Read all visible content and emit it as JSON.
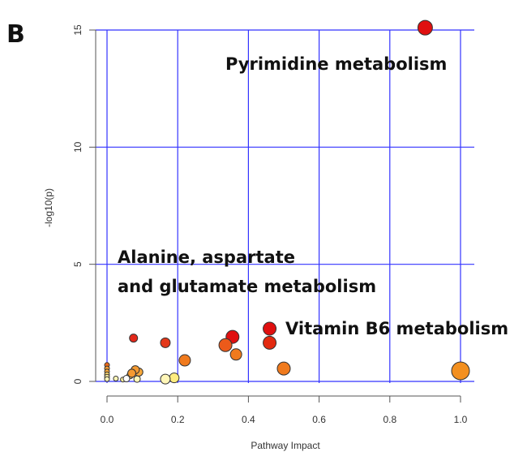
{
  "panel_label": "B",
  "chart_data": {
    "type": "scatter",
    "title": "",
    "xlabel": "Pathway Impact",
    "ylabel": "-log10(p)",
    "xlim": [
      0,
      1.0
    ],
    "ylim": [
      0,
      15
    ],
    "x_ticks": [
      "0.0",
      "0.2",
      "0.4",
      "0.6",
      "0.8",
      "1.0"
    ],
    "y_ticks": [
      "0",
      "5",
      "10",
      "15"
    ],
    "grid": true,
    "grid_color": "#3333ff",
    "legend": "none",
    "points": [
      {
        "x": 0.9,
        "y": 15.1,
        "color": "#e01010"
      },
      {
        "x": 1.0,
        "y": 0.45,
        "color": "#f39020"
      },
      {
        "x": 0.46,
        "y": 2.25,
        "color": "#e01010"
      },
      {
        "x": 0.46,
        "y": 1.65,
        "color": "#e32a10"
      },
      {
        "x": 0.5,
        "y": 0.55,
        "color": "#f07a1d"
      },
      {
        "x": 0.355,
        "y": 1.9,
        "color": "#e01010"
      },
      {
        "x": 0.335,
        "y": 1.55,
        "color": "#ec5a1a"
      },
      {
        "x": 0.365,
        "y": 1.15,
        "color": "#f07a1d"
      },
      {
        "x": 0.22,
        "y": 0.9,
        "color": "#f07a1d"
      },
      {
        "x": 0.165,
        "y": 1.65,
        "color": "#e3381a"
      },
      {
        "x": 0.075,
        "y": 1.85,
        "color": "#e3281a"
      },
      {
        "x": 0.19,
        "y": 0.15,
        "color": "#ffec80"
      },
      {
        "x": 0.165,
        "y": 0.1,
        "color": "#fff6b8"
      },
      {
        "x": 0.09,
        "y": 0.4,
        "color": "#f7a83a"
      },
      {
        "x": 0.08,
        "y": 0.5,
        "color": "#f59a30"
      },
      {
        "x": 0.07,
        "y": 0.35,
        "color": "#f59a30"
      },
      {
        "x": 0.065,
        "y": 0.25,
        "color": "#fad56a"
      },
      {
        "x": 0.085,
        "y": 0.1,
        "color": "#fff6b8"
      },
      {
        "x": 0.055,
        "y": 0.12,
        "color": "#ffffff"
      },
      {
        "x": 0.045,
        "y": 0.08,
        "color": "#fff0a0"
      },
      {
        "x": 0.025,
        "y": 0.12,
        "color": "#fff6b8"
      },
      {
        "x": 0.0,
        "y": 0.7,
        "color": "#ec6a1a"
      },
      {
        "x": 0.0,
        "y": 0.55,
        "color": "#f59a30"
      },
      {
        "x": 0.0,
        "y": 0.42,
        "color": "#f7a83a"
      },
      {
        "x": 0.0,
        "y": 0.3,
        "color": "#fad56a"
      },
      {
        "x": 0.0,
        "y": 0.2,
        "color": "#fff0a0"
      },
      {
        "x": 0.0,
        "y": 0.1,
        "color": "#fff6b8"
      }
    ],
    "point_sizes": [
      9,
      11,
      8,
      8,
      8,
      8,
      8,
      7,
      7,
      6,
      5,
      6,
      6,
      5,
      5,
      5,
      4,
      4,
      4,
      3,
      3,
      3,
      3,
      3,
      3,
      3,
      3
    ],
    "annotations": [
      {
        "text": "Pyrimidine metabolism"
      },
      {
        "text": "Alanine, aspartate"
      },
      {
        "text": "and glutamate metabolism"
      },
      {
        "text": "Vitamin B6 metabolism"
      }
    ]
  }
}
